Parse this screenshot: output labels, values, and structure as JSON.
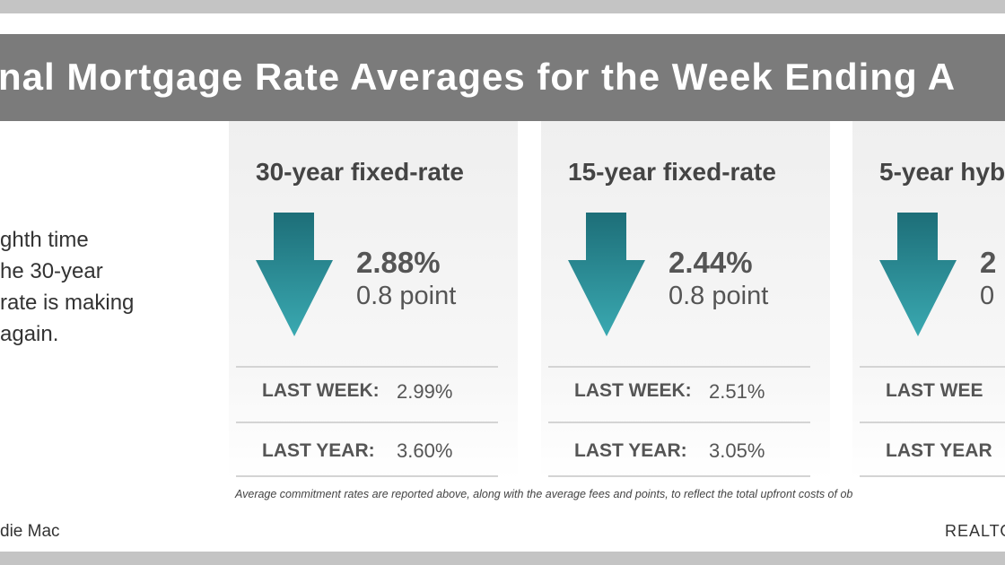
{
  "header": {
    "title": "nal Mortgage Rate Averages for the Week Ending A"
  },
  "intro": {
    "lines": [
      "ghth time",
      "he 30-year",
      "rate is making",
      "again."
    ]
  },
  "cards": [
    {
      "title": "30-year fixed-rate",
      "rate": "2.88%",
      "change": "0.8 point",
      "last_week_label": "LAST WEEK:",
      "last_week": "2.99%",
      "last_year_label": "LAST YEAR:",
      "last_year": "3.60%"
    },
    {
      "title": "15-year fixed-rate",
      "rate": "2.44%",
      "change": "0.8 point",
      "last_week_label": "LAST WEEK:",
      "last_week": "2.51%",
      "last_year_label": "LAST YEAR:",
      "last_year": "3.05%"
    },
    {
      "title": "5-year hyb",
      "rate": "2",
      "change": "0",
      "last_week_label": "LAST WEE",
      "last_week": "",
      "last_year_label": "LAST YEAR",
      "last_year": ""
    }
  ],
  "footnote": "Average commitment rates are reported above, along with the average fees and points, to reflect the total upfront costs of ob",
  "source": "die Mac",
  "brand": "REALTO"
}
